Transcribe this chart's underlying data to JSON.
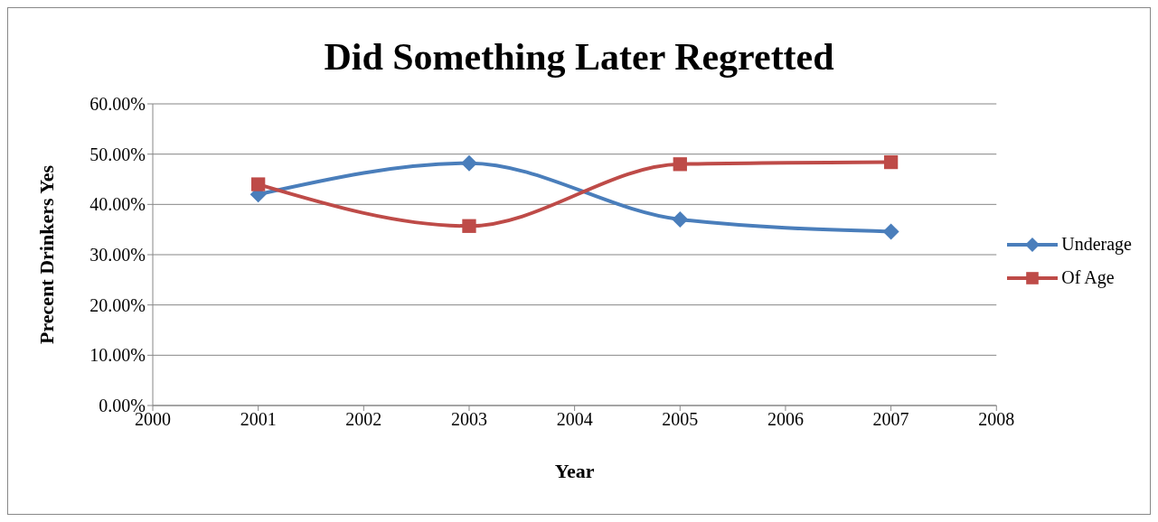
{
  "chart_data": {
    "type": "line",
    "title": "Did Something Later Regretted",
    "xlabel": "Year",
    "ylabel": "Precent Drinkers Yes",
    "x": [
      2001,
      2003,
      2005,
      2007
    ],
    "series": [
      {
        "name": "Underage",
        "color": "#4a7ebb",
        "marker": "diamond",
        "values": [
          42,
          48.2,
          37,
          34.6
        ]
      },
      {
        "name": "Of Age",
        "color": "#be4b48",
        "marker": "square",
        "values": [
          44,
          35.7,
          48,
          48.4
        ]
      }
    ],
    "xlim": [
      2000,
      2008
    ],
    "xticks": [
      2000,
      2001,
      2002,
      2003,
      2004,
      2005,
      2006,
      2007,
      2008
    ],
    "ylim": [
      0,
      60
    ],
    "yticks": [
      {
        "value": 0,
        "label": "0.00%"
      },
      {
        "value": 10,
        "label": "10.00%"
      },
      {
        "value": 20,
        "label": "20.00%"
      },
      {
        "value": 30,
        "label": "30.00%"
      },
      {
        "value": 40,
        "label": "40.00%"
      },
      {
        "value": 50,
        "label": "50.00%"
      },
      {
        "value": 60,
        "label": "60.00%"
      }
    ],
    "grid": "y",
    "legend": "right"
  }
}
